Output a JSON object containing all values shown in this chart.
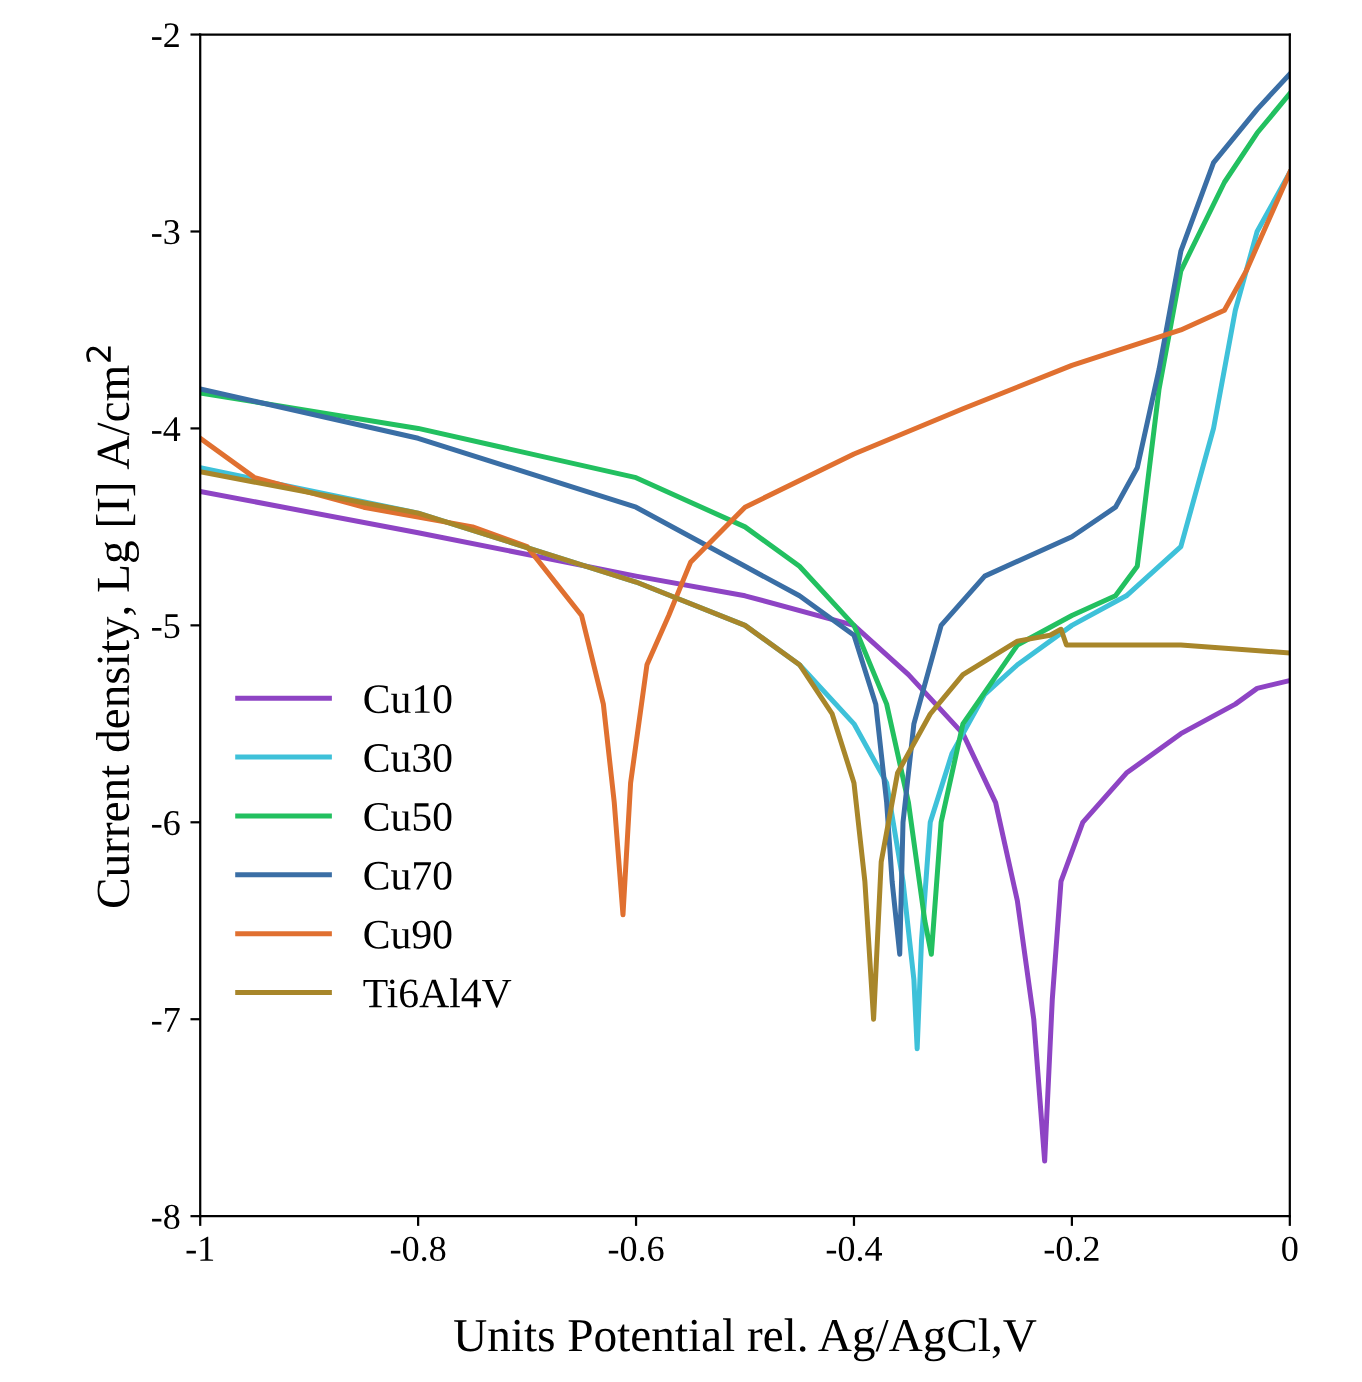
{
  "chart_data": {
    "type": "line",
    "xlabel": "Units Potential rel. Ag/AgCl,V",
    "ylabel": "Current density, Lg [I] A/cm$^{2}$",
    "xlim": [
      -1,
      0
    ],
    "ylim": [
      -8,
      -2
    ],
    "xticks": [
      -1,
      -0.8,
      -0.6,
      -0.4,
      -0.2,
      0
    ],
    "yticks": [
      -8,
      -7,
      -6,
      -5,
      -4,
      -3,
      -2
    ],
    "grid": false,
    "legend": "left",
    "marker": "none",
    "line_style": "solid",
    "series": [
      {
        "name": "Cu10",
        "color": "#8e44c4",
        "x": [
          -1,
          -0.8,
          -0.6,
          -0.5,
          -0.4,
          -0.35,
          -0.3,
          -0.27,
          -0.25,
          -0.235,
          -0.225,
          -0.218,
          -0.21,
          -0.19,
          -0.15,
          -0.1,
          -0.05,
          -0.03,
          0
        ],
        "values": [
          -4.32,
          -4.53,
          -4.75,
          -4.85,
          -5.0,
          -5.25,
          -5.55,
          -5.9,
          -6.4,
          -7.0,
          -7.72,
          -6.9,
          -6.3,
          -6.0,
          -5.75,
          -5.55,
          -5.4,
          -5.32,
          -5.28
        ]
      },
      {
        "name": "Cu30",
        "color": "#3ec1d9",
        "x": [
          -1,
          -0.8,
          -0.6,
          -0.5,
          -0.45,
          -0.4,
          -0.37,
          -0.355,
          -0.345,
          -0.342,
          -0.338,
          -0.33,
          -0.31,
          -0.28,
          -0.25,
          -0.2,
          -0.15,
          -0.1,
          -0.07,
          -0.05,
          -0.03,
          0
        ],
        "values": [
          -4.2,
          -4.43,
          -4.78,
          -5.0,
          -5.2,
          -5.5,
          -5.8,
          -6.3,
          -6.8,
          -7.15,
          -6.6,
          -6.0,
          -5.65,
          -5.35,
          -5.2,
          -5.0,
          -4.85,
          -4.6,
          -4.0,
          -3.4,
          -3.0,
          -2.7
        ]
      },
      {
        "name": "Cu50",
        "color": "#22c060",
        "x": [
          -1,
          -0.8,
          -0.6,
          -0.5,
          -0.45,
          -0.4,
          -0.37,
          -0.35,
          -0.335,
          -0.329,
          -0.32,
          -0.3,
          -0.25,
          -0.2,
          -0.16,
          -0.14,
          -0.12,
          -0.1,
          -0.06,
          -0.03,
          0
        ],
        "values": [
          -3.82,
          -4.0,
          -4.25,
          -4.5,
          -4.7,
          -5.0,
          -5.4,
          -5.9,
          -6.5,
          -6.67,
          -6.0,
          -5.5,
          -5.1,
          -4.95,
          -4.85,
          -4.7,
          -3.8,
          -3.2,
          -2.75,
          -2.5,
          -2.3
        ]
      },
      {
        "name": "Cu70",
        "color": "#3a6ea5",
        "x": [
          -1,
          -0.8,
          -0.6,
          -0.5,
          -0.45,
          -0.4,
          -0.38,
          -0.37,
          -0.365,
          -0.358,
          -0.355,
          -0.345,
          -0.32,
          -0.28,
          -0.2,
          -0.16,
          -0.14,
          -0.12,
          -0.1,
          -0.07,
          -0.03,
          0
        ],
        "values": [
          -3.8,
          -4.05,
          -4.4,
          -4.7,
          -4.85,
          -5.05,
          -5.4,
          -5.9,
          -6.3,
          -6.67,
          -6.0,
          -5.5,
          -5.0,
          -4.75,
          -4.55,
          -4.4,
          -4.2,
          -3.7,
          -3.1,
          -2.65,
          -2.38,
          -2.2
        ]
      },
      {
        "name": "Cu90",
        "color": "#e07030",
        "x": [
          -1,
          -0.95,
          -0.85,
          -0.75,
          -0.7,
          -0.65,
          -0.63,
          -0.62,
          -0.612,
          -0.605,
          -0.59,
          -0.57,
          -0.55,
          -0.5,
          -0.4,
          -0.3,
          -0.2,
          -0.1,
          -0.06,
          -0.04,
          0
        ],
        "values": [
          -4.05,
          -4.25,
          -4.4,
          -4.5,
          -4.6,
          -4.95,
          -5.4,
          -5.9,
          -6.47,
          -5.8,
          -5.2,
          -4.95,
          -4.68,
          -4.4,
          -4.13,
          -3.9,
          -3.68,
          -3.5,
          -3.4,
          -3.2,
          -2.7
        ]
      },
      {
        "name": "Ti6Al4V",
        "color": "#a8862a",
        "x": [
          -1,
          -0.8,
          -0.6,
          -0.5,
          -0.45,
          -0.42,
          -0.4,
          -0.39,
          -0.382,
          -0.375,
          -0.36,
          -0.33,
          -0.3,
          -0.25,
          -0.22,
          -0.21,
          -0.205,
          -0.15,
          -0.1,
          -0.05,
          0
        ],
        "values": [
          -4.22,
          -4.43,
          -4.78,
          -5.0,
          -5.2,
          -5.45,
          -5.8,
          -6.3,
          -7.0,
          -6.2,
          -5.75,
          -5.45,
          -5.25,
          -5.08,
          -5.05,
          -5.02,
          -5.1,
          -5.1,
          -5.1,
          -5.12,
          -5.14
        ]
      }
    ]
  }
}
